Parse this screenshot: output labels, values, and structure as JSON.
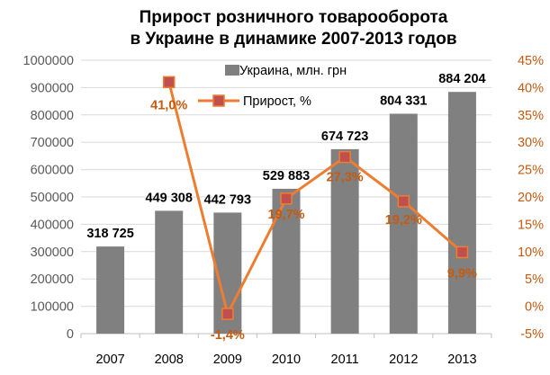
{
  "chart_data": {
    "type": "bar",
    "title": [
      "Прирост розничного товарооборота",
      "в Украине в динамике 2007-2013 годов"
    ],
    "categories": [
      "2007",
      "2008",
      "2009",
      "2010",
      "2011",
      "2012",
      "2013"
    ],
    "series": [
      {
        "name": "Украина, млн. грн",
        "type": "bar",
        "axis": "left",
        "values": [
          318725,
          449308,
          442793,
          529883,
          674723,
          804331,
          884204
        ],
        "labels": [
          "318 725",
          "449 308",
          "442 793",
          "529 883",
          "674 723",
          "804 331",
          "884 204"
        ],
        "color": "#808080"
      },
      {
        "name": "Прирост, %",
        "type": "line",
        "axis": "right",
        "values": [
          null,
          41.0,
          -1.4,
          19.7,
          27.3,
          19.2,
          9.9
        ],
        "labels": [
          "",
          "41,0%",
          "-1,4%",
          "19,7%",
          "27,3%",
          "19,2%",
          "9,9%"
        ],
        "color": "#ED7D31",
        "marker_color": "#C0504D",
        "label_color": "#C55A11"
      }
    ],
    "y_left": {
      "min": 0,
      "max": 1000000,
      "ticks": [
        "0",
        "100000",
        "200000",
        "300000",
        "400000",
        "500000",
        "600000",
        "700000",
        "800000",
        "900000",
        "1000000"
      ]
    },
    "y_right": {
      "min": -5,
      "max": 45,
      "ticks": [
        "-5%",
        "0%",
        "5%",
        "10%",
        "15%",
        "20%",
        "25%",
        "30%",
        "35%",
        "40%",
        "45%"
      ],
      "color": "#C55A11"
    },
    "grid": true,
    "legend": "top-right"
  }
}
